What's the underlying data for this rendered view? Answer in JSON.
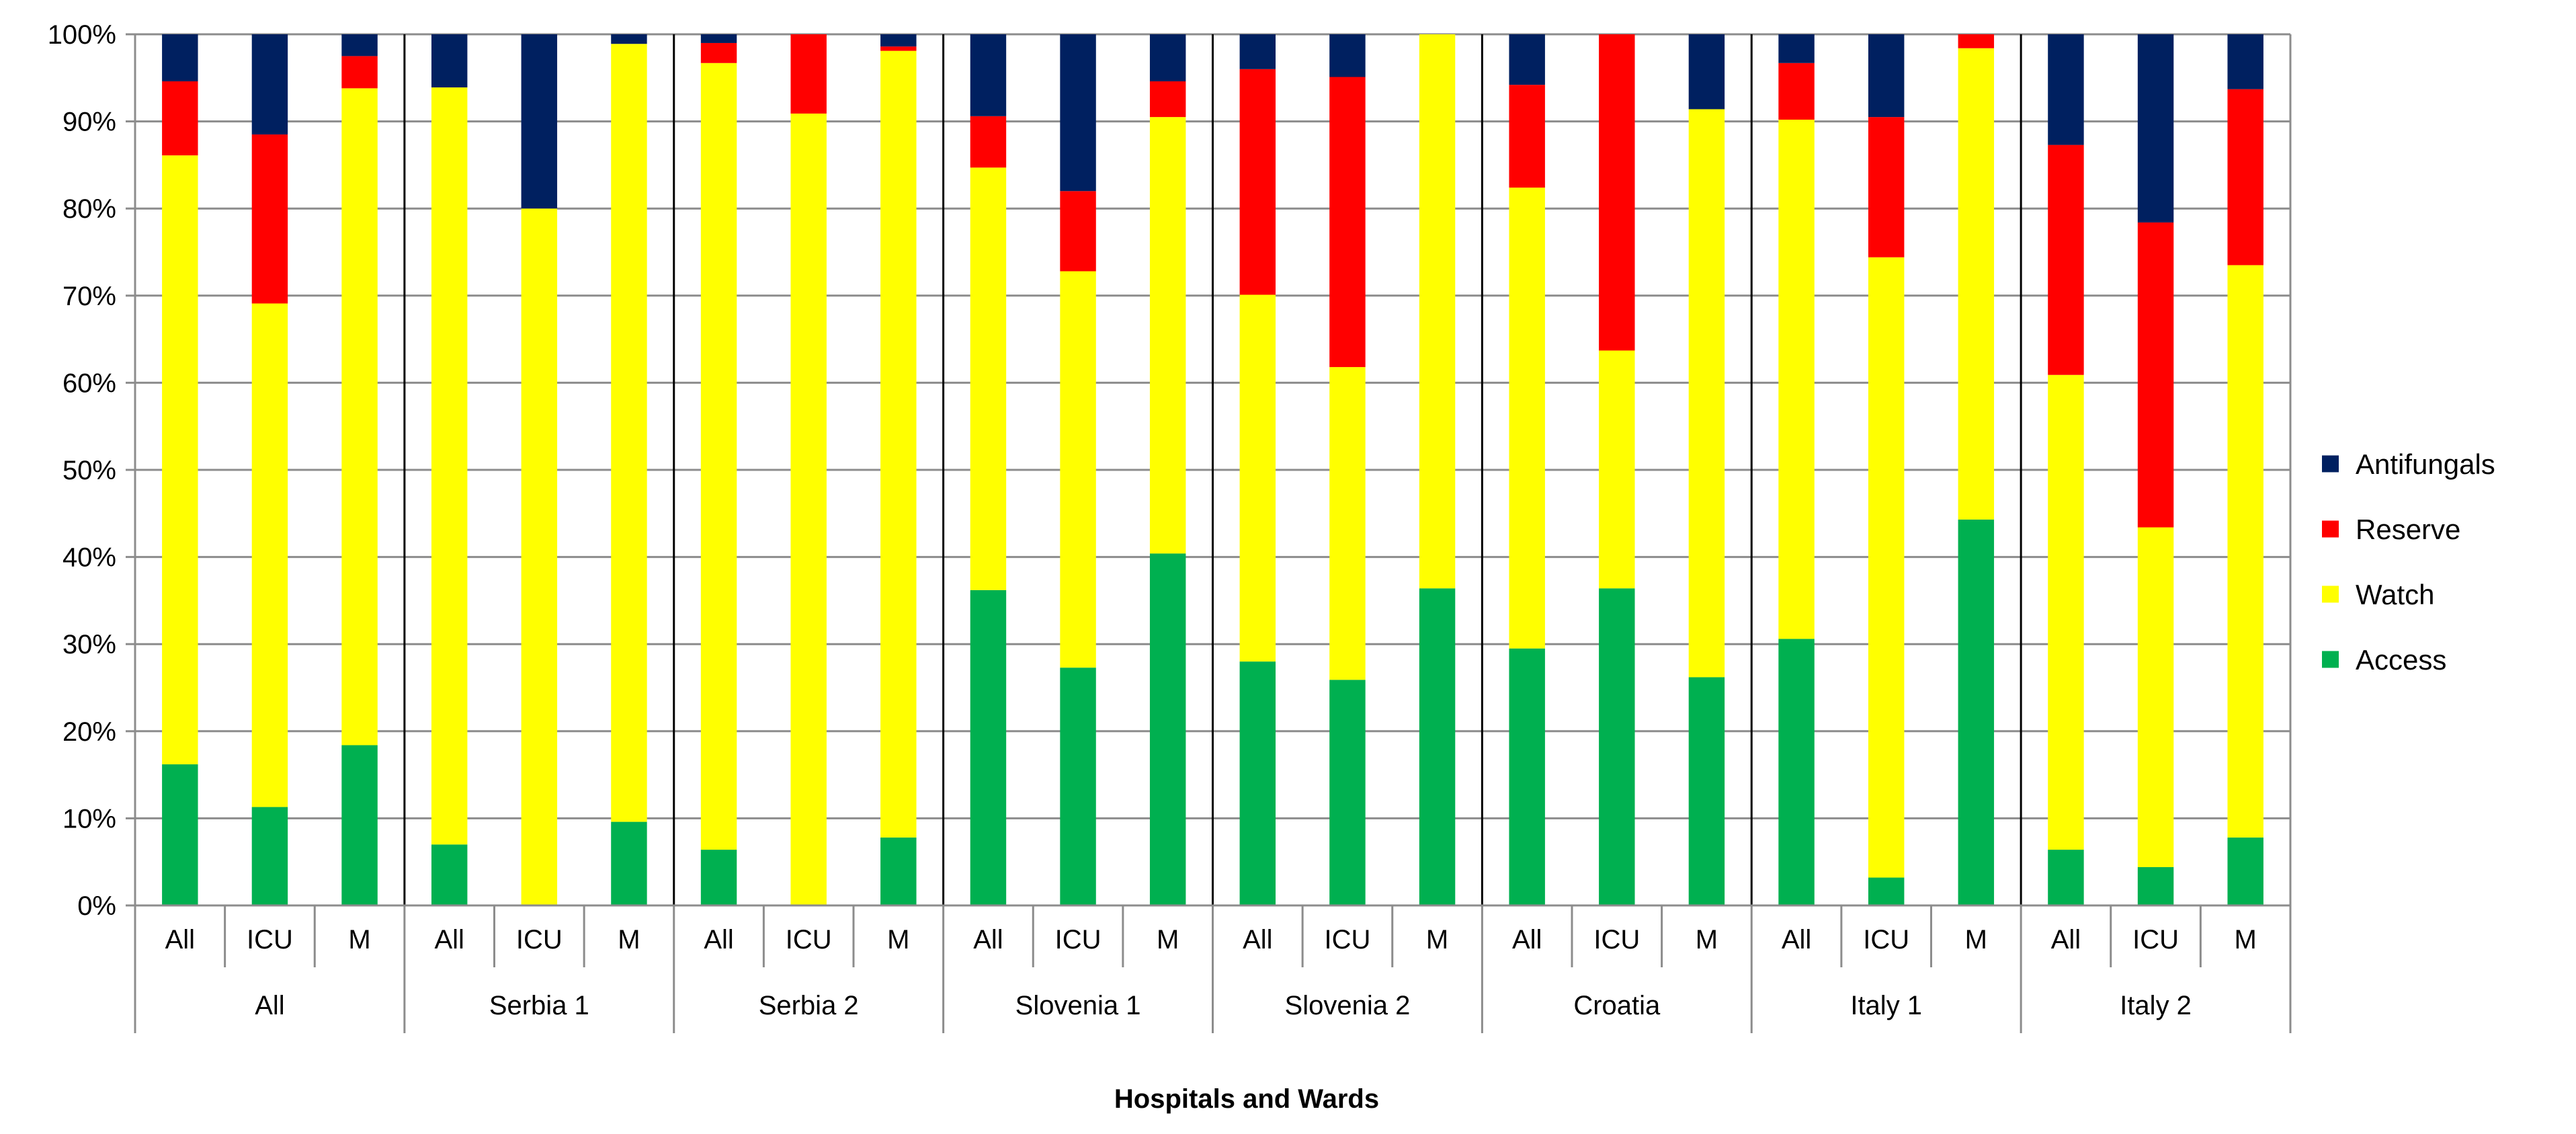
{
  "chart_data": {
    "type": "bar",
    "stacked": "percent",
    "title": "",
    "xlabel": "Hospitals and Wards",
    "ylabel": "",
    "ylim": [
      0,
      100
    ],
    "yticks": [
      "0%",
      "10%",
      "20%",
      "30%",
      "40%",
      "50%",
      "60%",
      "70%",
      "80%",
      "90%",
      "100%"
    ],
    "grid": true,
    "legend_position": "right",
    "groups": [
      "All",
      "Serbia 1",
      "Serbia 2",
      "Slovenia 1",
      "Slovenia 2",
      "Croatia",
      "Italy 1",
      "Italy 2"
    ],
    "wards": [
      "All",
      "ICU",
      "M"
    ],
    "categories": [
      "All / All",
      "All / ICU",
      "All / M",
      "Serbia 1 / All",
      "Serbia 1 / ICU",
      "Serbia 1 / M",
      "Serbia 2 / All",
      "Serbia 2 / ICU",
      "Serbia 2 / M",
      "Slovenia 1 / All",
      "Slovenia 1 / ICU",
      "Slovenia 1 / M",
      "Slovenia 2 / All",
      "Slovenia 2 / ICU",
      "Slovenia 2 / M",
      "Croatia / All",
      "Croatia / ICU",
      "Croatia / M",
      "Italy 1 / All",
      "Italy 1 / ICU",
      "Italy 1 / M",
      "Italy 2 / All",
      "Italy 2 / ICU",
      "Italy 2 / M"
    ],
    "series": [
      {
        "name": "Access",
        "color": "#00b050",
        "values": [
          16.2,
          11.3,
          18.4,
          7.0,
          0.0,
          9.6,
          6.4,
          0.0,
          7.8,
          36.2,
          27.3,
          40.4,
          28.0,
          25.9,
          36.4,
          29.5,
          36.4,
          26.2,
          30.6,
          3.2,
          44.3,
          6.4,
          4.4,
          7.8
        ]
      },
      {
        "name": "Watch",
        "color": "#ffff00",
        "values": [
          69.9,
          57.8,
          75.4,
          86.9,
          80.0,
          89.3,
          90.3,
          90.9,
          90.3,
          48.5,
          45.5,
          50.1,
          42.1,
          35.9,
          63.6,
          52.9,
          27.3,
          65.2,
          59.6,
          71.2,
          54.1,
          54.5,
          39.0,
          65.7
        ]
      },
      {
        "name": "Reserve",
        "color": "#ff0000",
        "values": [
          8.5,
          19.4,
          3.7,
          0.0,
          0.0,
          0.0,
          2.3,
          9.1,
          0.5,
          5.9,
          9.2,
          4.1,
          25.9,
          33.3,
          0.0,
          11.8,
          36.3,
          0.0,
          6.5,
          16.1,
          1.6,
          26.4,
          35.0,
          20.2
        ]
      },
      {
        "name": "Antifungals",
        "color": "#002060",
        "values": [
          5.4,
          11.5,
          2.5,
          6.1,
          20.0,
          1.1,
          1.0,
          0.0,
          1.4,
          9.4,
          18.0,
          5.4,
          4.0,
          4.9,
          0.0,
          5.8,
          0.0,
          8.6,
          3.3,
          9.5,
          0.0,
          12.7,
          21.6,
          6.3
        ]
      }
    ],
    "legend_order": [
      "Antifungals",
      "Reserve",
      "Watch",
      "Access"
    ]
  }
}
